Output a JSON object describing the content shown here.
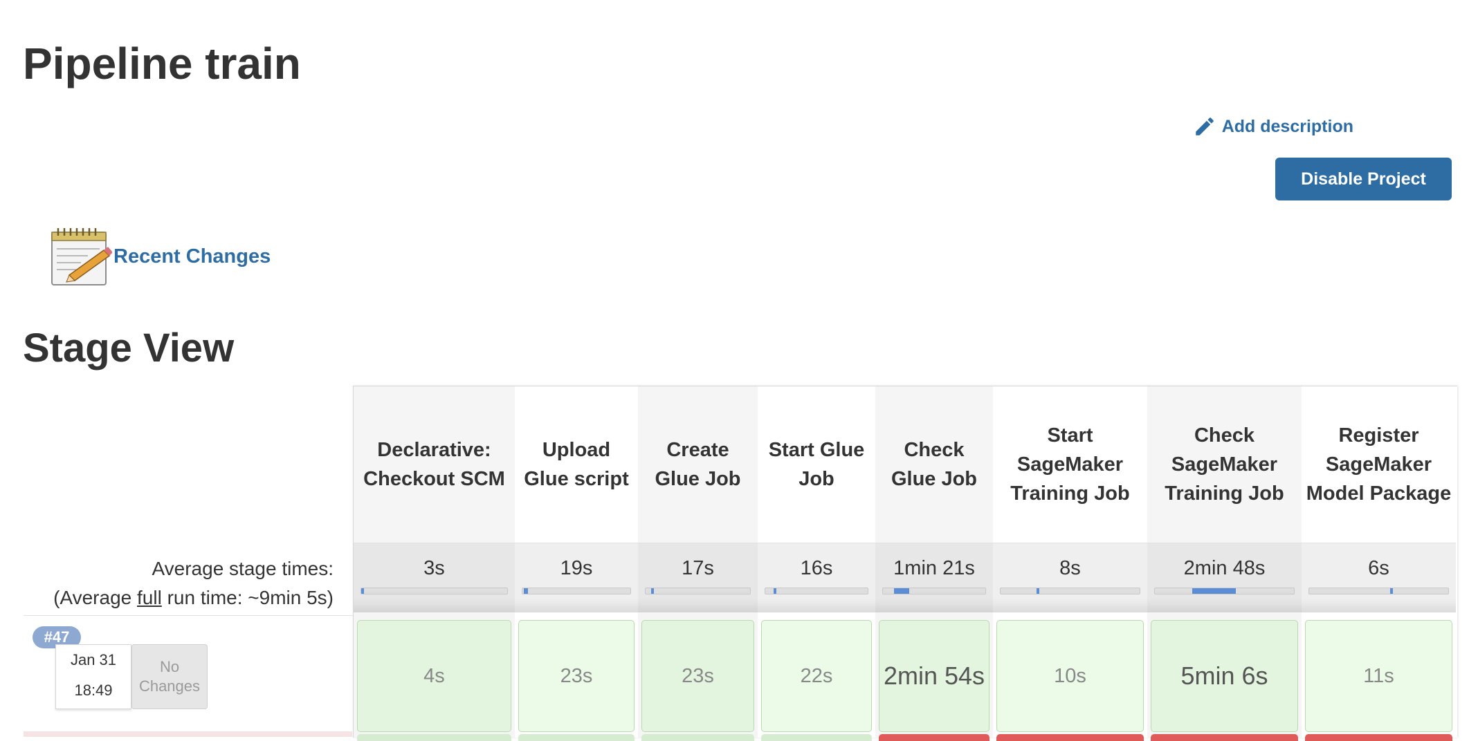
{
  "page": {
    "title": "Pipeline train"
  },
  "actions": {
    "add_description": "Add description",
    "disable_project": "Disable Project"
  },
  "recent_changes": {
    "label": "Recent Changes"
  },
  "stage_view": {
    "title": "Stage View",
    "avg_label_1": "Average stage times:",
    "avg_label_2a": "(Average ",
    "avg_label_2b": "full",
    "avg_label_2c": " run time: ~9min 5s)",
    "stages": [
      {
        "name": "Declarative: Checkout SCM",
        "avg": "3s",
        "fill_start": 0.0,
        "fill_fraction": 0.01,
        "run": "4s"
      },
      {
        "name": "Upload Glue script",
        "avg": "19s",
        "fill_start": 0.01,
        "fill_fraction": 0.04,
        "run": "23s"
      },
      {
        "name": "Create Glue Job",
        "avg": "17s",
        "fill_start": 0.05,
        "fill_fraction": 0.03,
        "run": "23s"
      },
      {
        "name": "Start Glue Job",
        "avg": "16s",
        "fill_start": 0.08,
        "fill_fraction": 0.03,
        "run": "22s"
      },
      {
        "name": "Check Glue Job",
        "avg": "1min 21s",
        "fill_start": 0.11,
        "fill_fraction": 0.15,
        "run": "2min 54s"
      },
      {
        "name": "Start SageMaker Training Job",
        "avg": "8s",
        "fill_start": 0.26,
        "fill_fraction": 0.01,
        "run": "10s"
      },
      {
        "name": "Check SageMaker Training Job",
        "avg": "2min 48s",
        "fill_start": 0.27,
        "fill_fraction": 0.31,
        "run": "5min 6s"
      },
      {
        "name": "Register SageMaker Model Package",
        "avg": "6s",
        "fill_start": 0.58,
        "fill_fraction": 0.01,
        "run": "11s"
      }
    ],
    "build": {
      "number": "#47",
      "date": "Jan 31",
      "time": "18:49",
      "changes": "No Changes"
    }
  }
}
